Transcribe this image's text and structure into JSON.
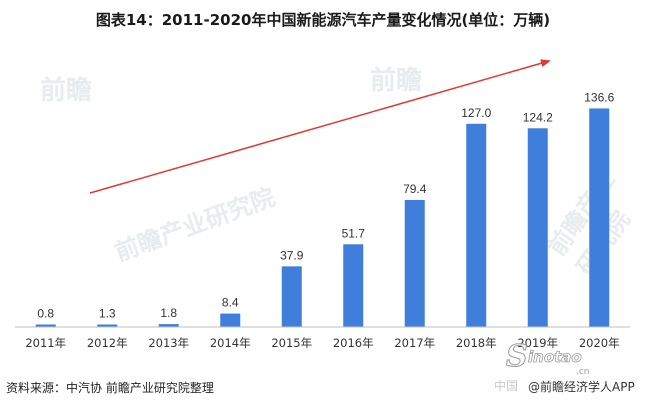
{
  "title": "图表14：2011-2020年中国新能源汽车产量变化情况(单位：万辆)",
  "source": "资料来源：中汽协 前瞻产业研究院整理",
  "credit_prefix": "中国",
  "credit": "@前瞻经济学人APP",
  "watermark": {
    "brand": "前瞻",
    "name": "前瞻产业研究院",
    "logo": "Sinotao.cn"
  },
  "colors": {
    "bar": "#3f7fdb",
    "trend_arrow": "#e03b2e",
    "axis": "#bfbfbf",
    "watermark": "#e7ecef"
  },
  "chart_data": {
    "type": "bar",
    "categories": [
      "2011年",
      "2012年",
      "2013年",
      "2014年",
      "2015年",
      "2016年",
      "2017年",
      "2018年",
      "2019年",
      "2020年"
    ],
    "values": [
      0.8,
      1.3,
      1.8,
      8.4,
      37.9,
      51.7,
      79.4,
      127.0,
      124.2,
      136.6
    ],
    "value_labels": [
      "0.8",
      "1.3",
      "1.8",
      "8.4",
      "37.9",
      "51.7",
      "79.4",
      "127.0",
      "124.2",
      "136.6"
    ],
    "ylim": [
      0,
      145
    ],
    "y_axis_visible": false,
    "grid": false,
    "legend": "none",
    "annotations": [
      "red upward trend arrow from lower-left to upper-right"
    ]
  }
}
